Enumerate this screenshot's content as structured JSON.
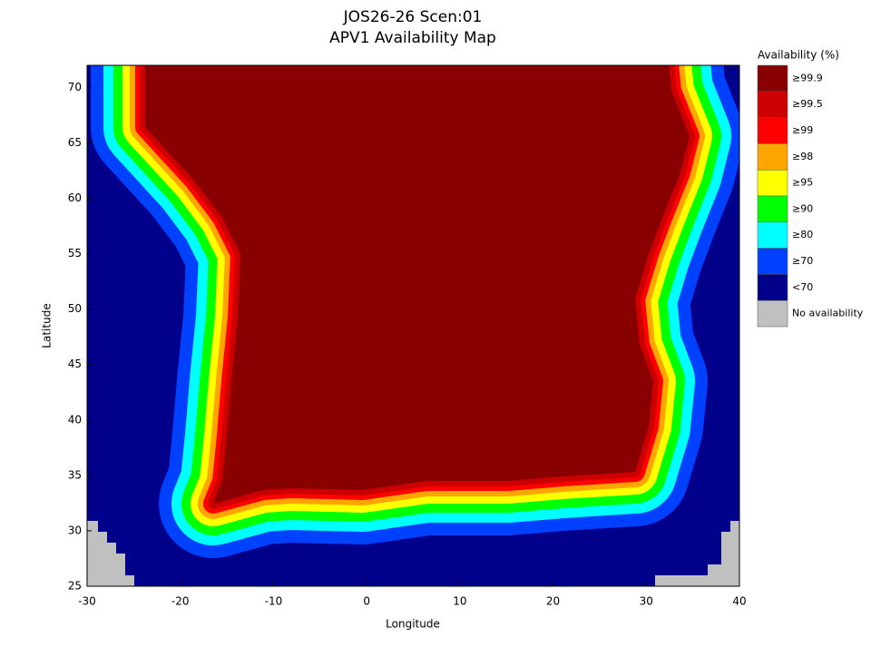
{
  "title": [
    "JOS26-26 Scen:01",
    "APV1 Availability Map"
  ],
  "x_axis": {
    "label": "Longitude",
    "lim": [
      -30,
      40
    ],
    "ticks": [
      -30,
      -20,
      -10,
      0,
      10,
      20,
      30,
      40
    ]
  },
  "y_axis": {
    "label": "Latitude",
    "lim": [
      25,
      72
    ],
    "ticks": [
      25,
      30,
      35,
      40,
      45,
      50,
      55,
      60,
      65,
      70
    ]
  },
  "legend": {
    "title": "Availability (%)",
    "entries": [
      {
        "label": "≥99.9",
        "color": "#880000"
      },
      {
        "label": "≥99.5",
        "color": "#cc0000"
      },
      {
        "label": "≥99",
        "color": "#ff0000"
      },
      {
        "label": "≥98",
        "color": "#ffa500"
      },
      {
        "label": "≥95",
        "color": "#ffff00"
      },
      {
        "label": "≥90",
        "color": "#00ff00"
      },
      {
        "label": "≥80",
        "color": "#00ffff"
      },
      {
        "label": "≥70",
        "color": "#0040ff"
      },
      {
        "label": "<70",
        "color": "#00008b"
      },
      {
        "label": "No availability",
        "color": "#c0c0c0"
      }
    ]
  }
}
